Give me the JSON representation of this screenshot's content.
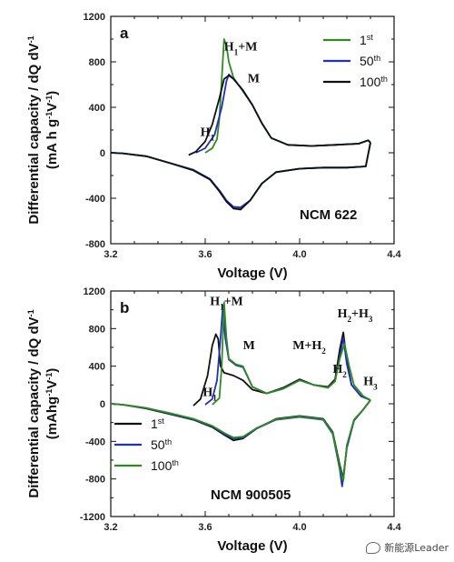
{
  "chart_data": [
    {
      "type": "line",
      "panel_label": "a",
      "sample": "NCM 622",
      "xlabel": "Voltage (V)",
      "ylabel": "Differential capacity / dQ dV",
      "ylabel_sup": "-1",
      "ylabel_units": "(mA h g",
      "ylabel_units_tail": "V",
      "xlim": [
        3.2,
        4.4
      ],
      "ylim": [
        -800,
        1200
      ],
      "xticks": [
        "3.2",
        "3.6",
        "4.0",
        "4.4"
      ],
      "yticks": [
        "1200",
        "800",
        "400",
        "0",
        "-400",
        "-800"
      ],
      "legend_position": "top-right",
      "annotations": [
        {
          "text": "H",
          "sub": "1",
          "tail": "+M",
          "x": 3.68,
          "y": 900
        },
        {
          "text": "M",
          "sub": "",
          "tail": "",
          "x": 3.78,
          "y": 620
        },
        {
          "text": "H",
          "sub": "1",
          "tail": "",
          "x": 3.58,
          "y": 150
        }
      ],
      "series": [
        {
          "name": "1",
          "name_sup": "st",
          "color": "#2e8b1e",
          "charge": [
            [
              3.6,
              0
            ],
            [
              3.63,
              40
            ],
            [
              3.65,
              120
            ],
            [
              3.66,
              300
            ],
            [
              3.67,
              650
            ],
            [
              3.68,
              1000
            ],
            [
              3.69,
              940
            ],
            [
              3.7,
              800
            ],
            [
              3.72,
              660
            ],
            [
              3.76,
              540
            ],
            [
              3.8,
              420
            ],
            [
              3.84,
              260
            ],
            [
              3.88,
              130
            ],
            [
              3.95,
              70
            ],
            [
              4.05,
              60
            ],
            [
              4.15,
              70
            ],
            [
              4.25,
              80
            ],
            [
              4.29,
              110
            ],
            [
              4.3,
              90
            ]
          ],
          "discharge": [
            [
              4.3,
              90
            ],
            [
              4.28,
              -120
            ],
            [
              4.2,
              -130
            ],
            [
              4.1,
              -130
            ],
            [
              4.0,
              -140
            ],
            [
              3.9,
              -170
            ],
            [
              3.84,
              -270
            ],
            [
              3.79,
              -420
            ],
            [
              3.75,
              -490
            ],
            [
              3.72,
              -480
            ],
            [
              3.69,
              -420
            ],
            [
              3.66,
              -330
            ],
            [
              3.62,
              -230
            ],
            [
              3.55,
              -150
            ],
            [
              3.45,
              -90
            ],
            [
              3.35,
              -30
            ],
            [
              3.25,
              -5
            ],
            [
              3.2,
              0
            ]
          ]
        },
        {
          "name": "50",
          "name_sup": "th",
          "color": "#1f2fbf",
          "charge": [
            [
              3.56,
              0
            ],
            [
              3.6,
              40
            ],
            [
              3.64,
              160
            ],
            [
              3.67,
              400
            ],
            [
              3.69,
              630
            ],
            [
              3.7,
              690
            ],
            [
              3.72,
              650
            ],
            [
              3.76,
              550
            ],
            [
              3.8,
              420
            ],
            [
              3.84,
              260
            ],
            [
              3.88,
              130
            ],
            [
              3.95,
              70
            ],
            [
              4.05,
              60
            ],
            [
              4.15,
              70
            ],
            [
              4.25,
              80
            ],
            [
              4.29,
              110
            ],
            [
              4.3,
              90
            ]
          ],
          "discharge": [
            [
              4.3,
              90
            ],
            [
              4.28,
              -120
            ],
            [
              4.2,
              -130
            ],
            [
              4.1,
              -130
            ],
            [
              4.0,
              -140
            ],
            [
              3.9,
              -170
            ],
            [
              3.84,
              -270
            ],
            [
              3.79,
              -420
            ],
            [
              3.75,
              -480
            ],
            [
              3.72,
              -475
            ],
            [
              3.69,
              -420
            ],
            [
              3.66,
              -330
            ],
            [
              3.62,
              -230
            ],
            [
              3.55,
              -150
            ],
            [
              3.45,
              -90
            ],
            [
              3.35,
              -30
            ],
            [
              3.25,
              -5
            ],
            [
              3.2,
              0
            ]
          ]
        },
        {
          "name": "100",
          "name_sup": "th",
          "color": "#111111",
          "charge": [
            [
              3.53,
              -20
            ],
            [
              3.56,
              10
            ],
            [
              3.6,
              100
            ],
            [
              3.63,
              250
            ],
            [
              3.66,
              480
            ],
            [
              3.68,
              650
            ],
            [
              3.7,
              680
            ],
            [
              3.72,
              650
            ],
            [
              3.76,
              550
            ],
            [
              3.8,
              420
            ],
            [
              3.84,
              260
            ],
            [
              3.88,
              130
            ],
            [
              3.95,
              70
            ],
            [
              4.05,
              60
            ],
            [
              4.15,
              70
            ],
            [
              4.25,
              80
            ],
            [
              4.29,
              110
            ],
            [
              4.3,
              90
            ]
          ],
          "discharge": [
            [
              4.3,
              90
            ],
            [
              4.28,
              -120
            ],
            [
              4.2,
              -130
            ],
            [
              4.1,
              -130
            ],
            [
              4.0,
              -140
            ],
            [
              3.9,
              -170
            ],
            [
              3.84,
              -270
            ],
            [
              3.79,
              -420
            ],
            [
              3.75,
              -500
            ],
            [
              3.72,
              -490
            ],
            [
              3.69,
              -430
            ],
            [
              3.66,
              -340
            ],
            [
              3.62,
              -235
            ],
            [
              3.55,
              -155
            ],
            [
              3.45,
              -90
            ],
            [
              3.35,
              -30
            ],
            [
              3.25,
              -5
            ],
            [
              3.2,
              0
            ]
          ]
        }
      ]
    },
    {
      "type": "line",
      "panel_label": "b",
      "sample": "NCM 900505",
      "xlabel": "Voltage (V)",
      "ylabel": "Differential capacity / dQ dV",
      "ylabel_sup": "-1",
      "ylabel_units": "(mAhg",
      "ylabel_units_tail": "V",
      "xlim": [
        3.2,
        4.4
      ],
      "ylim": [
        -1200,
        1200
      ],
      "xticks": [
        "3.2",
        "3.6",
        "4.0",
        "4.4"
      ],
      "yticks": [
        "1200",
        "800",
        "400",
        "0",
        "-400",
        "-800",
        "-1200"
      ],
      "legend_position": "bottom-left",
      "annotations": [
        {
          "text": "H",
          "sub": "1",
          "tail": "+M",
          "x": 3.62,
          "y": 1050
        },
        {
          "text": "M",
          "sub": "",
          "tail": "",
          "x": 3.76,
          "y": 580
        },
        {
          "text": "M+H",
          "sub": "2",
          "tail": "",
          "x": 3.97,
          "y": 580
        },
        {
          "text": "H",
          "sub": "1",
          "tail": "",
          "x": 3.59,
          "y": 80
        },
        {
          "text": "H",
          "sub": "2",
          "tail": "",
          "x": 4.14,
          "y": 330
        },
        {
          "text": "H",
          "sub": "2",
          "tail": "+H",
          "sub2": "3",
          "x": 4.16,
          "y": 920
        },
        {
          "text": "H",
          "sub": "3",
          "tail": "",
          "x": 4.27,
          "y": 200
        }
      ],
      "series": [
        {
          "name": "1",
          "name_sup": "st",
          "color": "#111111",
          "charge": [
            [
              3.55,
              -20
            ],
            [
              3.58,
              50
            ],
            [
              3.61,
              300
            ],
            [
              3.63,
              620
            ],
            [
              3.645,
              740
            ],
            [
              3.655,
              690
            ],
            [
              3.665,
              400
            ],
            [
              3.68,
              330
            ],
            [
              3.72,
              300
            ],
            [
              3.76,
              250
            ],
            [
              3.8,
              150
            ],
            [
              3.86,
              110
            ],
            [
              3.93,
              170
            ],
            [
              4.0,
              260
            ],
            [
              4.06,
              200
            ],
            [
              4.12,
              180
            ],
            [
              4.15,
              260
            ],
            [
              4.17,
              580
            ],
            [
              4.185,
              760
            ],
            [
              4.2,
              450
            ],
            [
              4.22,
              200
            ],
            [
              4.26,
              80
            ],
            [
              4.3,
              40
            ]
          ],
          "discharge": [
            [
              4.3,
              40
            ],
            [
              4.27,
              -60
            ],
            [
              4.23,
              -180
            ],
            [
              4.2,
              -450
            ],
            [
              4.185,
              -800
            ],
            [
              4.17,
              -650
            ],
            [
              4.14,
              -300
            ],
            [
              4.1,
              -160
            ],
            [
              4.0,
              -130
            ],
            [
              3.9,
              -160
            ],
            [
              3.82,
              -260
            ],
            [
              3.76,
              -370
            ],
            [
              3.72,
              -390
            ],
            [
              3.68,
              -330
            ],
            [
              3.63,
              -250
            ],
            [
              3.55,
              -170
            ],
            [
              3.45,
              -110
            ],
            [
              3.35,
              -50
            ],
            [
              3.25,
              -10
            ],
            [
              3.2,
              0
            ]
          ]
        },
        {
          "name": "50",
          "name_sup": "th",
          "color": "#1f2fbf",
          "charge": [
            [
              3.6,
              -10
            ],
            [
              3.63,
              50
            ],
            [
              3.65,
              250
            ],
            [
              3.665,
              700
            ],
            [
              3.675,
              1050
            ],
            [
              3.685,
              700
            ],
            [
              3.7,
              470
            ],
            [
              3.73,
              410
            ],
            [
              3.76,
              390
            ],
            [
              3.8,
              180
            ],
            [
              3.86,
              110
            ],
            [
              3.93,
              160
            ],
            [
              4.0,
              250
            ],
            [
              4.06,
              200
            ],
            [
              4.12,
              170
            ],
            [
              4.15,
              240
            ],
            [
              4.17,
              500
            ],
            [
              4.185,
              700
            ],
            [
              4.2,
              420
            ],
            [
              4.22,
              200
            ],
            [
              4.26,
              80
            ],
            [
              4.3,
              40
            ]
          ],
          "discharge": [
            [
              4.3,
              40
            ],
            [
              4.27,
              -60
            ],
            [
              4.23,
              -180
            ],
            [
              4.2,
              -470
            ],
            [
              4.18,
              -880
            ],
            [
              4.17,
              -700
            ],
            [
              4.14,
              -320
            ],
            [
              4.1,
              -170
            ],
            [
              4.0,
              -140
            ],
            [
              3.9,
              -170
            ],
            [
              3.82,
              -260
            ],
            [
              3.76,
              -360
            ],
            [
              3.72,
              -370
            ],
            [
              3.68,
              -320
            ],
            [
              3.63,
              -240
            ],
            [
              3.55,
              -165
            ],
            [
              3.45,
              -105
            ],
            [
              3.35,
              -45
            ],
            [
              3.25,
              -10
            ],
            [
              3.2,
              0
            ]
          ]
        },
        {
          "name": "100",
          "name_sup": "th",
          "color": "#2e8b1e",
          "charge": [
            [
              3.63,
              -10
            ],
            [
              3.66,
              60
            ],
            [
              3.67,
              400
            ],
            [
              3.68,
              1080
            ],
            [
              3.69,
              700
            ],
            [
              3.7,
              480
            ],
            [
              3.73,
              420
            ],
            [
              3.76,
              400
            ],
            [
              3.8,
              180
            ],
            [
              3.86,
              110
            ],
            [
              3.93,
              160
            ],
            [
              4.0,
              250
            ],
            [
              4.06,
              200
            ],
            [
              4.12,
              170
            ],
            [
              4.15,
              240
            ],
            [
              4.17,
              480
            ],
            [
              4.19,
              640
            ],
            [
              4.21,
              400
            ],
            [
              4.23,
              200
            ],
            [
              4.27,
              80
            ],
            [
              4.3,
              40
            ]
          ],
          "discharge": [
            [
              4.3,
              40
            ],
            [
              4.27,
              -60
            ],
            [
              4.23,
              -170
            ],
            [
              4.2,
              -440
            ],
            [
              4.185,
              -820
            ],
            [
              4.17,
              -680
            ],
            [
              4.14,
              -310
            ],
            [
              4.1,
              -165
            ],
            [
              4.0,
              -135
            ],
            [
              3.9,
              -165
            ],
            [
              3.82,
              -255
            ],
            [
              3.76,
              -350
            ],
            [
              3.72,
              -360
            ],
            [
              3.68,
              -310
            ],
            [
              3.63,
              -235
            ],
            [
              3.55,
              -160
            ],
            [
              3.45,
              -100
            ],
            [
              3.35,
              -45
            ],
            [
              3.25,
              -10
            ],
            [
              3.2,
              0
            ]
          ]
        }
      ]
    }
  ],
  "watermark": {
    "text": "新能源Leader",
    "icon": "wechat-icon"
  }
}
